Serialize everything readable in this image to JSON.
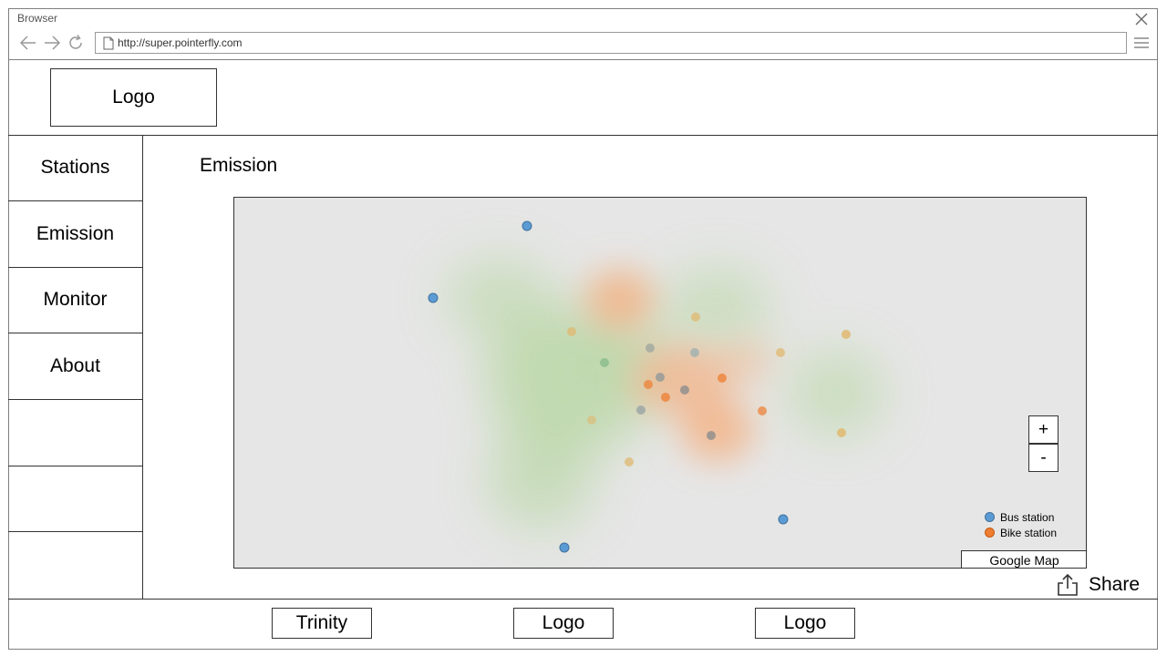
{
  "browser": {
    "title": "Browser",
    "url": "http://super.pointerfly.com"
  },
  "header": {
    "logo_label": "Logo"
  },
  "sidebar": {
    "items": [
      {
        "label": "Stations"
      },
      {
        "label": "Emission"
      },
      {
        "label": "Monitor"
      },
      {
        "label": "About"
      },
      {
        "label": ""
      },
      {
        "label": ""
      },
      {
        "label": ""
      }
    ]
  },
  "main": {
    "title": "Emission",
    "map": {
      "zoom_in_label": "+",
      "zoom_out_label": "-",
      "google_map_label": "Google Map",
      "legend": [
        {
          "label": "Bus station",
          "color": "#5b9bd5"
        },
        {
          "label": "Bike station",
          "color": "#ed7d31"
        }
      ]
    },
    "share_label": "Share"
  },
  "footer": {
    "items": [
      {
        "label": "Trinity"
      },
      {
        "label": "Logo"
      },
      {
        "label": "Logo"
      }
    ]
  },
  "colors": {
    "bus_station": "#5b9bd5",
    "bike_station": "#ed7d31",
    "heat_green": "#a9d18e",
    "heat_orange": "#f4b183",
    "map_background": "#e6e6e6"
  }
}
